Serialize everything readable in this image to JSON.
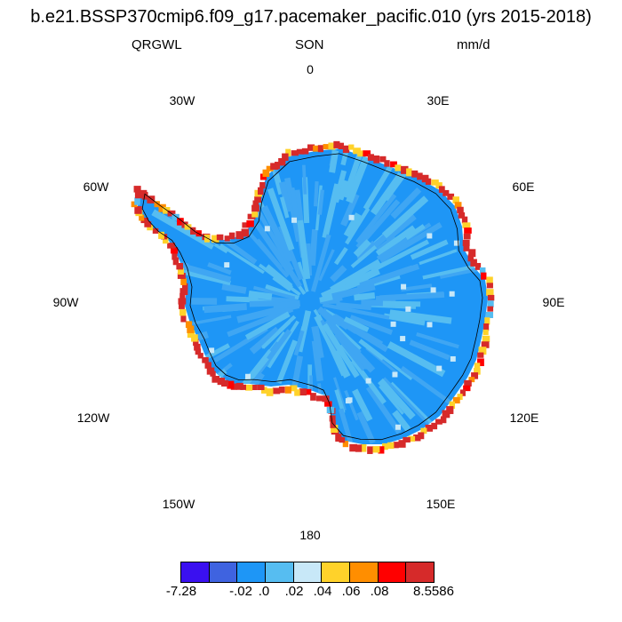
{
  "title": "b.e21.BSSP370cmip6.f09_g17.pacemaker_pacific.010 (yrs 2015-2018)",
  "subtitle": {
    "variable": "QRGWL",
    "season": "SON",
    "units": "mm/d"
  },
  "longitude_labels": [
    "0",
    "30E",
    "60E",
    "90E",
    "120E",
    "150E",
    "180",
    "150W",
    "120W",
    "90W",
    "60W",
    "30W"
  ],
  "colorbar": {
    "colors": [
      "#3a10f0",
      "#3f63e0",
      "#1e96f6",
      "#56bdf1",
      "#c8e8f8",
      "#ffd22a",
      "#ff8e00",
      "#ff0000",
      "#d62a2a"
    ],
    "labels": [
      "-7.28",
      "-.02",
      ".0",
      ".02",
      ".04",
      ".06",
      ".08",
      "8.5586"
    ]
  },
  "map": {
    "projection": "south-polar-stereographic",
    "region": "Antarctica",
    "interior_color": "#1e96f6",
    "coast_colors": [
      "#d62a2a",
      "#ff0000",
      "#ffd22a",
      "#ff8e00",
      "#56bdf1",
      "#c8e8f8"
    ]
  }
}
